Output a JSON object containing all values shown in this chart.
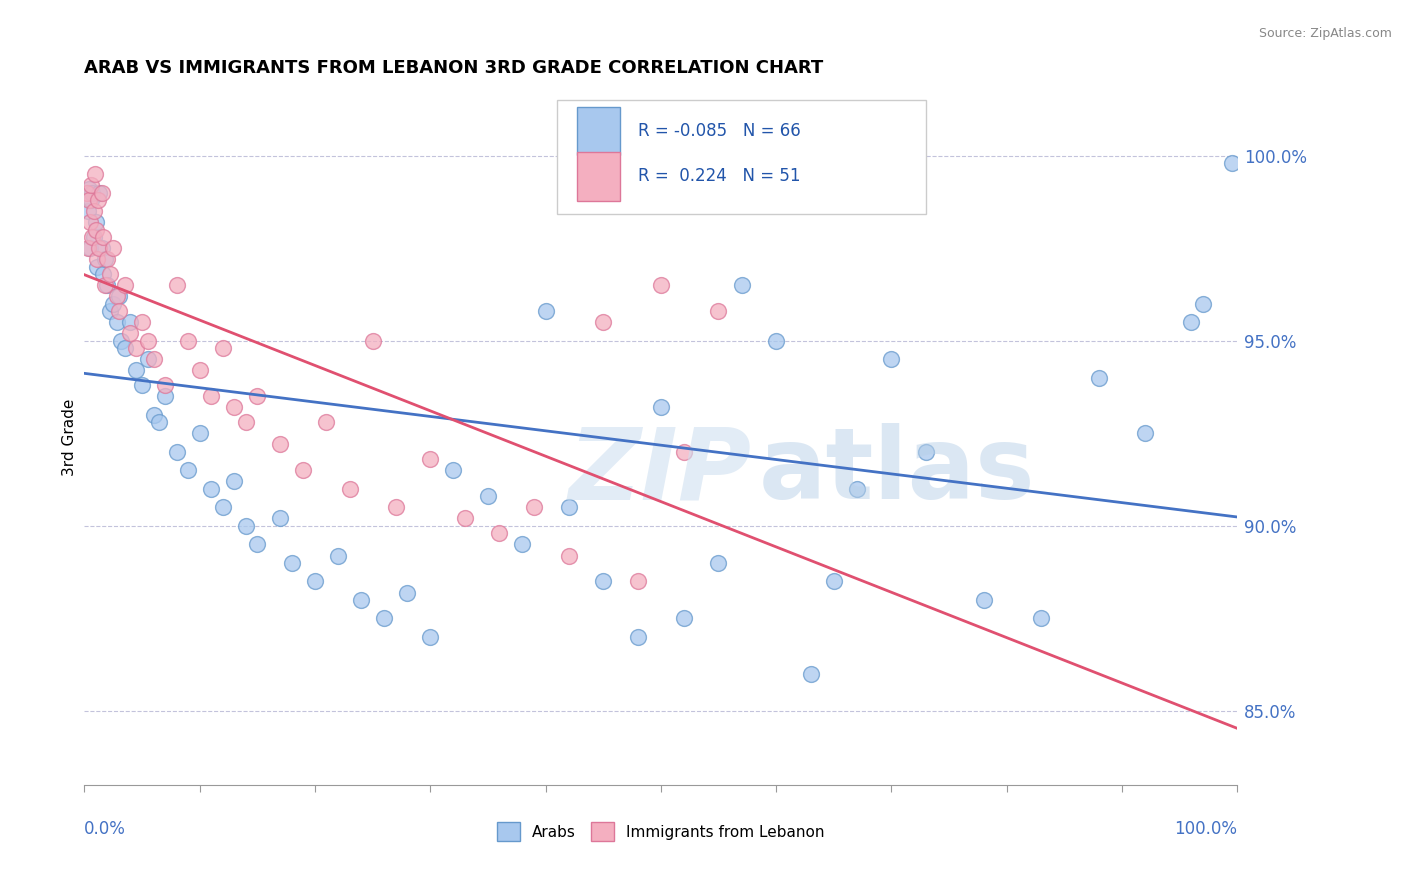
{
  "title": "ARAB VS IMMIGRANTS FROM LEBANON 3RD GRADE CORRELATION CHART",
  "source": "Source: ZipAtlas.com",
  "ylabel": "3rd Grade",
  "xmin": 0.0,
  "xmax": 100.0,
  "ymin": 83.0,
  "ymax": 101.8,
  "yticks_right": [
    85.0,
    90.0,
    95.0,
    100.0
  ],
  "ytick_labels_right": [
    "85.0%",
    "90.0%",
    "95.0%",
    "100.0%"
  ],
  "arab_color": "#a8c8ee",
  "arab_edge_color": "#6699cc",
  "leb_color": "#f4afc0",
  "leb_edge_color": "#dd7799",
  "arab_R": -0.085,
  "arab_N": 66,
  "leb_R": 0.224,
  "leb_N": 51,
  "trend_arab_color": "#4472c4",
  "trend_leb_color": "#e05070",
  "arab_x": [
    0.3,
    0.4,
    0.5,
    0.6,
    0.7,
    0.8,
    1.0,
    1.1,
    1.3,
    1.5,
    1.6,
    1.8,
    2.0,
    2.2,
    2.5,
    2.8,
    3.0,
    3.2,
    3.5,
    4.0,
    4.5,
    5.0,
    5.5,
    6.0,
    6.5,
    7.0,
    8.0,
    9.0,
    10.0,
    11.0,
    12.0,
    13.0,
    14.0,
    15.0,
    17.0,
    18.0,
    20.0,
    22.0,
    24.0,
    26.0,
    28.0,
    30.0,
    32.0,
    35.0,
    38.0,
    40.0,
    42.0,
    45.0,
    48.0,
    50.0,
    52.0,
    55.0,
    57.0,
    60.0,
    63.0,
    65.0,
    67.0,
    70.0,
    73.0,
    78.0,
    83.0,
    88.0,
    92.0,
    96.0,
    97.0,
    99.5
  ],
  "arab_y": [
    98.5,
    99.1,
    97.5,
    98.8,
    99.0,
    97.8,
    98.2,
    97.0,
    99.0,
    97.5,
    96.8,
    97.2,
    96.5,
    95.8,
    96.0,
    95.5,
    96.2,
    95.0,
    94.8,
    95.5,
    94.2,
    93.8,
    94.5,
    93.0,
    92.8,
    93.5,
    92.0,
    91.5,
    92.5,
    91.0,
    90.5,
    91.2,
    90.0,
    89.5,
    90.2,
    89.0,
    88.5,
    89.2,
    88.0,
    87.5,
    88.2,
    87.0,
    91.5,
    90.8,
    89.5,
    95.8,
    90.5,
    88.5,
    87.0,
    93.2,
    87.5,
    89.0,
    96.5,
    95.0,
    86.0,
    88.5,
    91.0,
    94.5,
    92.0,
    88.0,
    87.5,
    94.0,
    92.5,
    95.5,
    96.0,
    99.8
  ],
  "leb_x": [
    0.2,
    0.3,
    0.4,
    0.5,
    0.6,
    0.7,
    0.8,
    0.9,
    1.0,
    1.1,
    1.2,
    1.3,
    1.5,
    1.6,
    1.8,
    2.0,
    2.2,
    2.5,
    2.8,
    3.0,
    3.5,
    4.0,
    4.5,
    5.0,
    5.5,
    6.0,
    7.0,
    8.0,
    9.0,
    10.0,
    11.0,
    12.0,
    13.0,
    14.0,
    15.0,
    17.0,
    19.0,
    21.0,
    23.0,
    25.0,
    27.0,
    30.0,
    33.0,
    36.0,
    39.0,
    42.0,
    45.0,
    48.0,
    50.0,
    52.0,
    55.0
  ],
  "leb_y": [
    99.0,
    97.5,
    98.8,
    98.2,
    99.2,
    97.8,
    98.5,
    99.5,
    98.0,
    97.2,
    98.8,
    97.5,
    99.0,
    97.8,
    96.5,
    97.2,
    96.8,
    97.5,
    96.2,
    95.8,
    96.5,
    95.2,
    94.8,
    95.5,
    95.0,
    94.5,
    93.8,
    96.5,
    95.0,
    94.2,
    93.5,
    94.8,
    93.2,
    92.8,
    93.5,
    92.2,
    91.5,
    92.8,
    91.0,
    95.0,
    90.5,
    91.8,
    90.2,
    89.8,
    90.5,
    89.2,
    95.5,
    88.5,
    96.5,
    92.0,
    95.8
  ]
}
